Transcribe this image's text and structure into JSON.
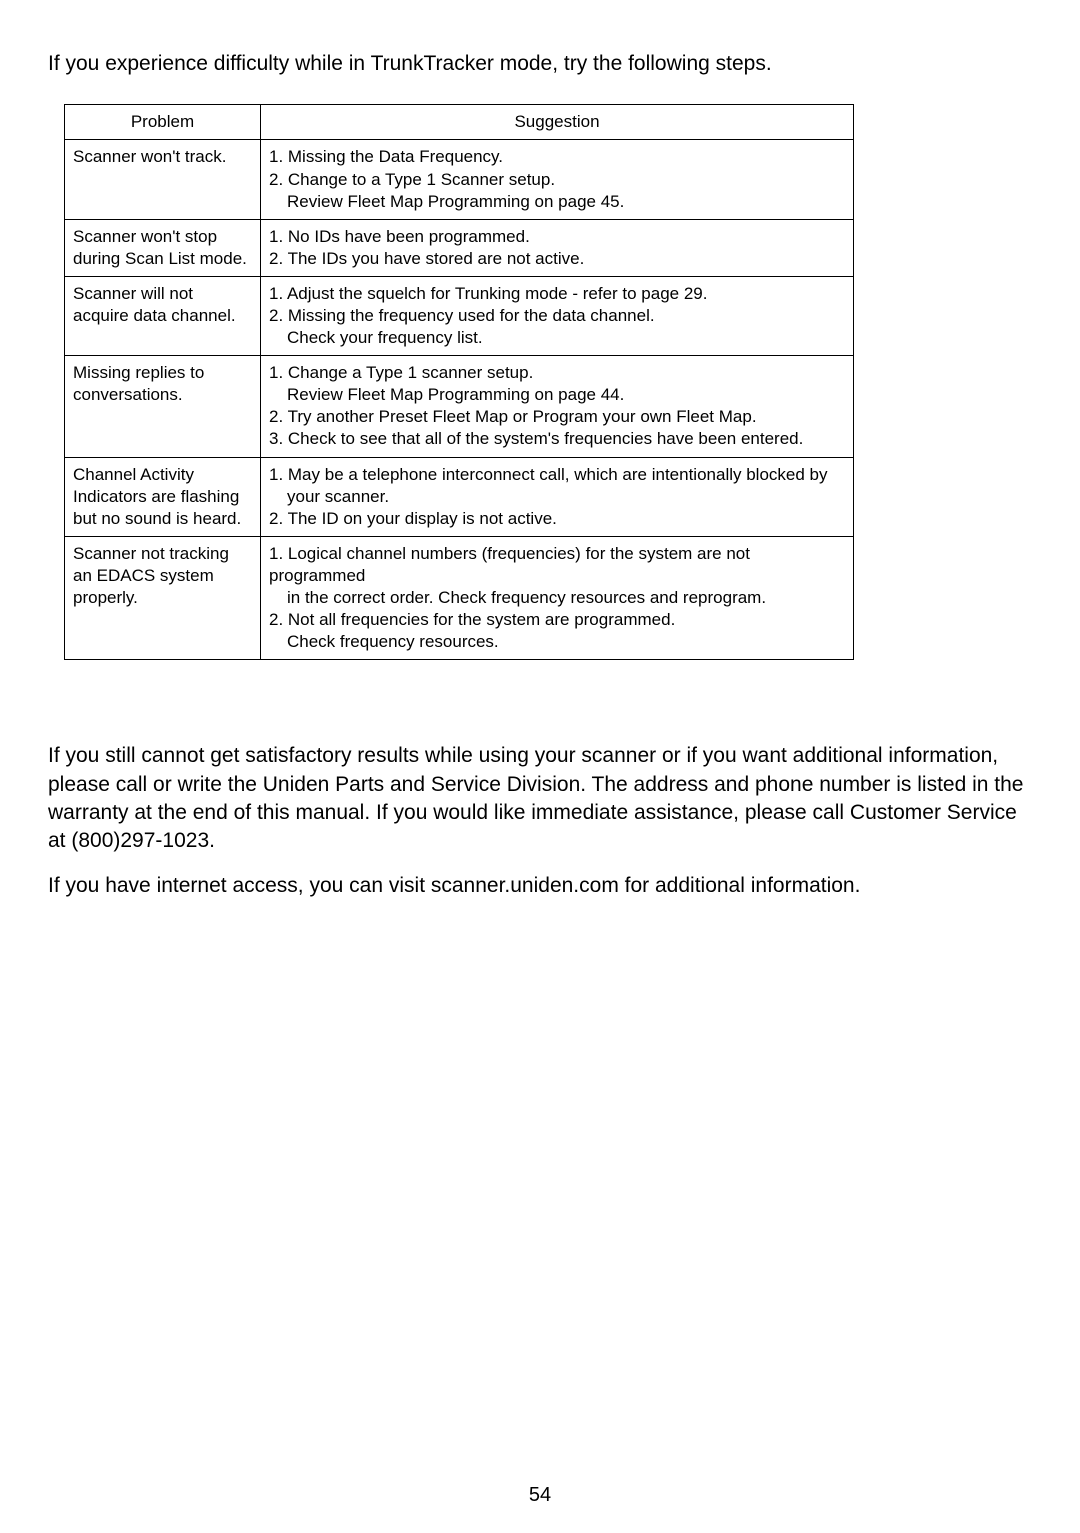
{
  "intro": "If you experience difficulty while in TrunkTracker mode, try the following steps.",
  "table": {
    "headers": {
      "problem": "Problem",
      "suggestion": "Suggestion"
    },
    "rows": [
      {
        "problem": "Scanner won't track.",
        "suggestions": [
          {
            "text": "1. Missing the Data Frequency.",
            "indent": false
          },
          {
            "text": "2. Change to a Type 1 Scanner setup.",
            "indent": false
          },
          {
            "text": "Review Fleet Map Programming on page 45.",
            "indent": true
          }
        ]
      },
      {
        "problem": "Scanner won't stop during Scan List mode.",
        "suggestions": [
          {
            "text": "1. No IDs have been programmed.",
            "indent": false
          },
          {
            "text": "2. The IDs you have stored are not active.",
            "indent": false
          }
        ]
      },
      {
        "problem": "Scanner will not acquire data channel.",
        "suggestions": [
          {
            "text": "1. Adjust the squelch for Trunking mode - refer to page 29.",
            "indent": false
          },
          {
            "text": "2. Missing the frequency used for the data channel.",
            "indent": false
          },
          {
            "text": "Check your frequency list.",
            "indent": true
          }
        ]
      },
      {
        "problem": "Missing replies to conversations.",
        "suggestions": [
          {
            "text": "1. Change a Type 1 scanner setup.",
            "indent": false
          },
          {
            "text": "Review Fleet Map Programming on page 44.",
            "indent": true
          },
          {
            "text": "2. Try another Preset Fleet Map or Program your own Fleet Map.",
            "indent": false
          },
          {
            "text": "3. Check to see that all of the system's frequencies have been entered.",
            "indent": false
          }
        ]
      },
      {
        "problem": "Channel Activity Indicators are flashing but no sound is heard.",
        "suggestions": [
          {
            "text": "1. May be a telephone interconnect call, which are intentionally blocked by",
            "indent": false
          },
          {
            "text": "your scanner.",
            "indent": true
          },
          {
            "text": "2. The ID on your display is not active.",
            "indent": false
          }
        ]
      },
      {
        "problem": "Scanner not tracking an EDACS system properly.",
        "suggestions": [
          {
            "text": "1. Logical channel numbers (frequencies) for the system are not programmed",
            "indent": false
          },
          {
            "text": "in the correct order. Check frequency resources and reprogram.",
            "indent": true
          },
          {
            "text": "2. Not all frequencies for the system are programmed.",
            "indent": false
          },
          {
            "text": "Check frequency resources.",
            "indent": true
          }
        ]
      }
    ]
  },
  "para1": "If you still cannot get satisfactory results while using your scanner or if you want additional information, please call or write the Uniden Parts and Service Division. The address and phone number is listed in the warranty at the end of this manual. If you would like immediate assistance, please call Customer Service at (800)297-1023.",
  "para2": "If you have internet access, you can visit scanner.uniden.com    for additional information.",
  "pageNumber": "54"
}
